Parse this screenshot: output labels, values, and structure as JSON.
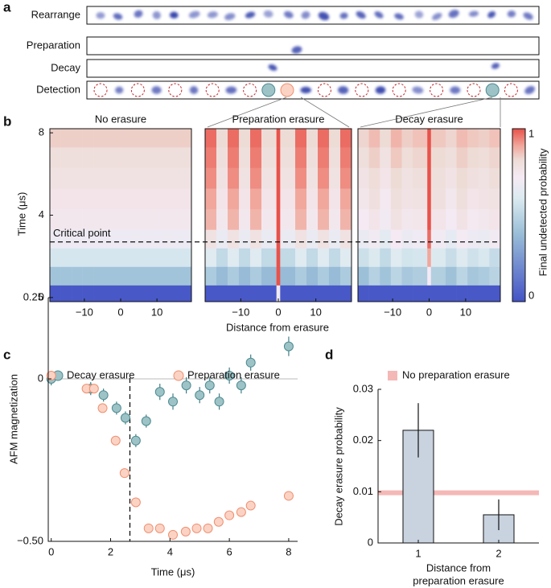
{
  "panel_letters": [
    "a",
    "b",
    "c",
    "d"
  ],
  "panel_a": {
    "rows": [
      "Rearrange",
      "Preparation",
      "Decay",
      "Detection"
    ]
  },
  "chart_data": [
    {
      "type": "heatmap",
      "x_label": "Distance from erasure",
      "y_label": "Time (μs)",
      "colorbar_label": "Final undetected probability",
      "xedges": [
        -19.5,
        -16.5,
        -13.5,
        -10.5,
        -7.5,
        -4.5,
        -0.5,
        0.5,
        4.5,
        7.5,
        10.5,
        13.5,
        16.5,
        19.5
      ],
      "yedges": [
        -0.2,
        0.6,
        1.5,
        2.4,
        3.3,
        4.3,
        5.3,
        6.3,
        7.3,
        8.2
      ],
      "xlim": [
        -19.5,
        19.5
      ],
      "ylim": [
        -0.2,
        8.2
      ],
      "xticks": [
        {
          "value": -10,
          "label": "−10"
        },
        0,
        10
      ],
      "yticks": [
        0,
        4,
        8
      ],
      "colorbar_ticks": [
        0,
        1
      ],
      "colorscale": [
        [
          0,
          "#4452c6"
        ],
        [
          0.4,
          "#9cc0d8"
        ],
        [
          0.6,
          "#dceaf0"
        ],
        [
          0.72,
          "#f5eaf4"
        ],
        [
          0.82,
          "#eddcd6"
        ],
        [
          0.9,
          "#f2a79c"
        ],
        [
          1,
          "#e8524a"
        ]
      ],
      "critical_time": 2.7,
      "critical_label": "Critical point",
      "panels": [
        {
          "title": "No erasure",
          "z": [
            [
              0.02,
              0.02,
              0.02,
              0.02,
              0.02,
              0.02,
              0.02,
              0.02,
              0.02,
              0.02,
              0.02,
              0.02,
              0.02
            ],
            [
              0.42,
              0.42,
              0.42,
              0.42,
              0.42,
              0.42,
              0.42,
              0.42,
              0.42,
              0.42,
              0.42,
              0.42,
              0.42
            ],
            [
              0.58,
              0.58,
              0.58,
              0.58,
              0.58,
              0.58,
              0.58,
              0.58,
              0.58,
              0.58,
              0.58,
              0.58,
              0.58
            ],
            [
              0.68,
              0.68,
              0.68,
              0.68,
              0.68,
              0.68,
              0.68,
              0.68,
              0.68,
              0.68,
              0.68,
              0.68,
              0.68
            ],
            [
              0.74,
              0.74,
              0.74,
              0.74,
              0.74,
              0.74,
              0.74,
              0.74,
              0.74,
              0.74,
              0.74,
              0.74,
              0.74
            ],
            [
              0.76,
              0.76,
              0.76,
              0.76,
              0.76,
              0.76,
              0.76,
              0.76,
              0.76,
              0.76,
              0.76,
              0.76,
              0.76
            ],
            [
              0.78,
              0.78,
              0.78,
              0.78,
              0.78,
              0.78,
              0.78,
              0.78,
              0.78,
              0.78,
              0.78,
              0.78,
              0.78
            ],
            [
              0.8,
              0.8,
              0.8,
              0.8,
              0.8,
              0.8,
              0.8,
              0.8,
              0.8,
              0.8,
              0.8,
              0.8,
              0.8
            ],
            [
              0.84,
              0.84,
              0.84,
              0.84,
              0.84,
              0.84,
              0.84,
              0.84,
              0.84,
              0.84,
              0.84,
              0.84,
              0.84
            ]
          ]
        },
        {
          "title": "Preparation erasure",
          "z": [
            [
              0.02,
              0.02,
              0.02,
              0.02,
              0.02,
              0.02,
              0.7,
              0.02,
              0.02,
              0.02,
              0.02,
              0.02,
              0.02
            ],
            [
              0.45,
              0.38,
              0.45,
              0.38,
              0.45,
              0.38,
              1,
              0.38,
              0.45,
              0.38,
              0.45,
              0.38,
              0.45
            ],
            [
              0.62,
              0.52,
              0.62,
              0.52,
              0.62,
              0.52,
              1,
              0.52,
              0.62,
              0.52,
              0.62,
              0.52,
              0.62
            ],
            [
              0.78,
              0.66,
              0.78,
              0.66,
              0.78,
              0.66,
              1,
              0.66,
              0.78,
              0.66,
              0.78,
              0.66,
              0.78
            ],
            [
              0.88,
              0.74,
              0.88,
              0.74,
              0.88,
              0.74,
              1,
              0.74,
              0.88,
              0.74,
              0.88,
              0.74,
              0.88
            ],
            [
              0.9,
              0.76,
              0.9,
              0.76,
              0.9,
              0.76,
              1,
              0.76,
              0.9,
              0.76,
              0.9,
              0.76,
              0.9
            ],
            [
              0.93,
              0.78,
              0.93,
              0.78,
              0.93,
              0.78,
              1,
              0.78,
              0.93,
              0.78,
              0.93,
              0.78,
              0.93
            ],
            [
              0.95,
              0.8,
              0.95,
              0.8,
              0.95,
              0.8,
              1,
              0.8,
              0.95,
              0.8,
              0.95,
              0.8,
              0.95
            ],
            [
              0.97,
              0.82,
              0.97,
              0.82,
              0.97,
              0.82,
              1,
              0.82,
              0.97,
              0.82,
              0.97,
              0.82,
              0.97
            ]
          ]
        },
        {
          "title": "Decay erasure",
          "z": [
            [
              0.02,
              0.02,
              0.02,
              0.02,
              0.02,
              0.02,
              0.02,
              0.02,
              0.02,
              0.02,
              0.02,
              0.02,
              0.02
            ],
            [
              0.4,
              0.48,
              0.42,
              0.5,
              0.44,
              0.46,
              0.72,
              0.47,
              0.41,
              0.5,
              0.43,
              0.45,
              0.49
            ],
            [
              0.55,
              0.6,
              0.52,
              0.62,
              0.57,
              0.58,
              0.9,
              0.6,
              0.54,
              0.61,
              0.56,
              0.59,
              0.53
            ],
            [
              0.66,
              0.7,
              0.64,
              0.72,
              0.67,
              0.69,
              0.97,
              0.7,
              0.65,
              0.71,
              0.68,
              0.66,
              0.7
            ],
            [
              0.72,
              0.76,
              0.7,
              0.78,
              0.74,
              0.75,
              1,
              0.76,
              0.71,
              0.77,
              0.73,
              0.74,
              0.76
            ],
            [
              0.75,
              0.79,
              0.73,
              0.8,
              0.77,
              0.78,
              1,
              0.79,
              0.74,
              0.8,
              0.76,
              0.77,
              0.78
            ],
            [
              0.77,
              0.81,
              0.76,
              0.82,
              0.78,
              0.8,
              1,
              0.8,
              0.77,
              0.82,
              0.79,
              0.78,
              0.81
            ],
            [
              0.8,
              0.84,
              0.78,
              0.85,
              0.81,
              0.83,
              1,
              0.82,
              0.8,
              0.84,
              0.82,
              0.81,
              0.83
            ],
            [
              0.83,
              0.87,
              0.82,
              0.88,
              0.84,
              0.86,
              1,
              0.85,
              0.83,
              0.87,
              0.85,
              0.84,
              0.86
            ]
          ]
        }
      ]
    },
    {
      "type": "scatter",
      "x_label": "Time (μs)",
      "y_label": "AFM magnetization",
      "xlim": [
        -0.1,
        8.3
      ],
      "ylim": [
        -0.5,
        0.25
      ],
      "xticks": [
        0,
        2,
        4,
        6,
        8
      ],
      "yticks": [
        0.25,
        0,
        {
          "value": -0.5,
          "label": "−0.50"
        }
      ],
      "hline": 0,
      "critical_x": 2.65,
      "series": [
        {
          "name": "Decay erasure",
          "color": "#9dc3c6",
          "edge_color": "#4d8b92",
          "x": [
            0,
            1.33,
            1.76,
            2.2,
            2.5,
            2.85,
            3.2,
            3.66,
            4.1,
            4.55,
            5.0,
            5.34,
            5.66,
            6.0,
            6.4,
            6.72,
            8.0
          ],
          "values": [
            0.0,
            -0.03,
            -0.05,
            -0.09,
            -0.12,
            -0.19,
            -0.13,
            -0.04,
            -0.07,
            -0.02,
            -0.05,
            -0.02,
            -0.07,
            0.01,
            -0.02,
            0.05,
            0.1
          ],
          "errors": [
            0.02,
            0.02,
            0.02,
            0.02,
            0.02,
            0.02,
            0.02,
            0.025,
            0.025,
            0.025,
            0.025,
            0.025,
            0.025,
            0.025,
            0.025,
            0.025,
            0.03
          ]
        },
        {
          "name": "Preparation erasure",
          "color": "#fbd3c4",
          "edge_color": "#f08f70",
          "x": [
            0,
            1.19,
            1.44,
            1.73,
            2.17,
            2.47,
            2.85,
            3.28,
            3.66,
            4.1,
            4.53,
            4.9,
            5.28,
            5.64,
            6.0,
            6.4,
            6.72,
            8.0
          ],
          "values": [
            0.01,
            -0.03,
            -0.03,
            -0.09,
            -0.19,
            -0.29,
            -0.38,
            -0.46,
            -0.46,
            -0.48,
            -0.47,
            -0.46,
            -0.46,
            -0.44,
            -0.42,
            -0.41,
            -0.39,
            -0.36
          ]
        }
      ]
    },
    {
      "type": "bar",
      "x_label": [
        "Distance from",
        "preparation erasure"
      ],
      "y_label": "Decay erasure probability",
      "categories": [
        "1",
        "2"
      ],
      "values": [
        0.022,
        0.0055
      ],
      "errors": [
        0.0053,
        0.003
      ],
      "color": "#c9d3e0",
      "ylim": [
        0,
        0.03
      ],
      "yticks": [
        0,
        0.01,
        0.02,
        0.03
      ],
      "reference": {
        "name": "No preparation erasure",
        "value": 0.0098,
        "color": "#f4b8b6"
      }
    }
  ]
}
